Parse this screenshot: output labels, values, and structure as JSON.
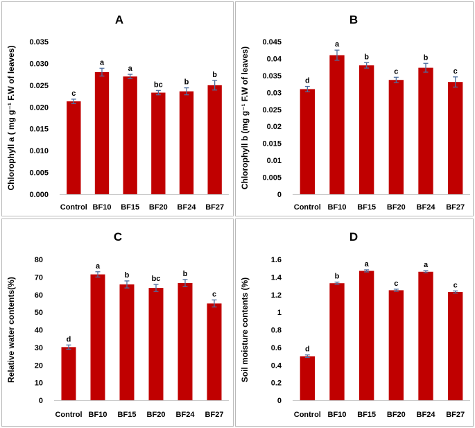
{
  "chart_data": [
    {
      "type": "bar",
      "title": "A",
      "ylabel": "Chlorophyll a ( mg g⁻¹ F.W of leaves)",
      "xlabel": "",
      "categories": [
        "Control",
        "BF10",
        "BF15",
        "BF20",
        "BF24",
        "BF27"
      ],
      "values": [
        0.0213,
        0.028,
        0.027,
        0.0233,
        0.0236,
        0.025
      ],
      "errors": [
        0.0005,
        0.0009,
        0.0005,
        0.0005,
        0.0008,
        0.0011
      ],
      "letters": [
        "c",
        "a",
        "a",
        "bc",
        "b",
        "b"
      ],
      "ylim": [
        0,
        0.035
      ],
      "yticks": [
        "0.000",
        "0.005",
        "0.010",
        "0.015",
        "0.020",
        "0.025",
        "0.030",
        "0.035"
      ],
      "bar_color": "#c00000",
      "error_color": "#4f6f9f"
    },
    {
      "type": "bar",
      "title": "B",
      "ylabel": "Chlorophyll b (mg g⁻¹ F.W of leaves)",
      "xlabel": "",
      "categories": [
        "Control",
        "BF10",
        "BF15",
        "BF20",
        "BF24",
        "BF27"
      ],
      "values": [
        0.031,
        0.041,
        0.038,
        0.0337,
        0.0373,
        0.0331
      ],
      "errors": [
        0.0008,
        0.0015,
        0.0008,
        0.0008,
        0.0013,
        0.0015
      ],
      "letters": [
        "d",
        "a",
        "b",
        "c",
        "b",
        "c"
      ],
      "ylim": [
        0,
        0.045
      ],
      "yticks": [
        "0",
        "0.005",
        "0.01",
        "0.015",
        "0.02",
        "0.025",
        "0.03",
        "0.035",
        "0.04",
        "0.045"
      ],
      "bar_color": "#c00000",
      "error_color": "#4f6f9f"
    },
    {
      "type": "bar",
      "title": "C",
      "ylabel": "Relative water contents(%)",
      "xlabel": "",
      "categories": [
        "Control",
        "BF10",
        "BF15",
        "BF20",
        "BF24",
        "BF27"
      ],
      "values": [
        30.2,
        71.5,
        65.8,
        63.8,
        66.6,
        55.0
      ],
      "errors": [
        1.2,
        1.5,
        2.0,
        2.0,
        2.0,
        2.0
      ],
      "letters": [
        "d",
        "a",
        "b",
        "bc",
        "b",
        "c"
      ],
      "ylim": [
        0,
        80
      ],
      "yticks": [
        "0",
        "10",
        "20",
        "30",
        "40",
        "50",
        "60",
        "70",
        "80"
      ],
      "bar_color": "#c00000",
      "error_color": "#4f6f9f"
    },
    {
      "type": "bar",
      "title": "D",
      "ylabel": "Soil moisture contents (%)",
      "xlabel": "",
      "categories": [
        "Control",
        "BF10",
        "BF15",
        "BF20",
        "BF24",
        "BF27"
      ],
      "values": [
        0.5,
        1.33,
        1.47,
        1.25,
        1.46,
        1.23
      ],
      "errors": [
        0.015,
        0.012,
        0.012,
        0.012,
        0.012,
        0.012
      ],
      "letters": [
        "d",
        "b",
        "a",
        "c",
        "a",
        "c"
      ],
      "ylim": [
        0,
        1.6
      ],
      "yticks": [
        "0",
        "0.2",
        "0.4",
        "0.6",
        "0.8",
        "1",
        "1.2",
        "1.4",
        "1.6"
      ],
      "bar_color": "#c00000",
      "error_color": "#4f6f9f"
    }
  ]
}
